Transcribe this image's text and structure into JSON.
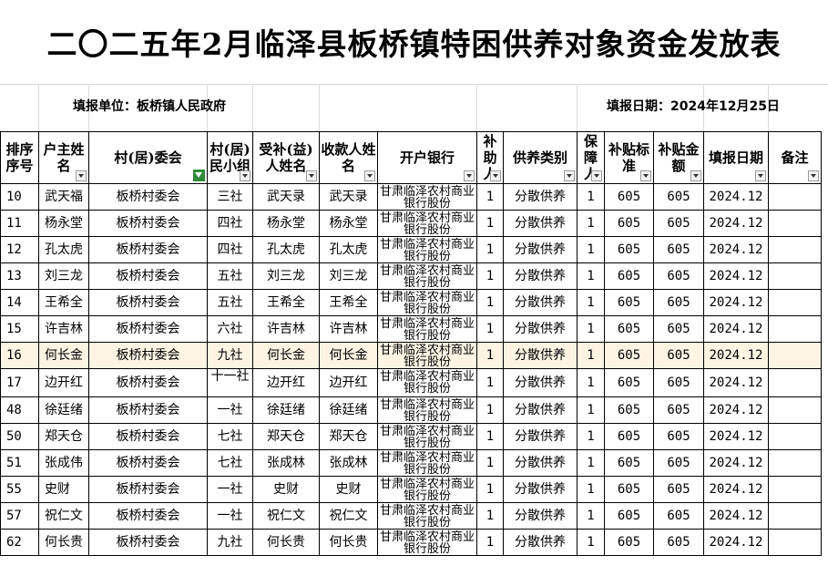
{
  "title": "二〇二五年2月临泽县板桥镇特困供养对象资金发放表",
  "unit_label": "填报单位：板桥镇人民政府",
  "date_label": "填报日期：2024年12月25日",
  "headers": [
    "排序序号",
    "户主姓名",
    "村(居)委会",
    "村(居)民小组",
    "受补(益)人姓名",
    "收款人姓名",
    "开户银行",
    "补助人",
    "供养类别",
    "保障人",
    "补贴标准",
    "补贴金额",
    "填报日期",
    "备注"
  ],
  "rows": [
    {
      "no": "10",
      "head": "武天福",
      "village": "板桥村委会",
      "group": "三社",
      "beneficiary": "武天录",
      "payee": "武天录",
      "bank": "甘肃临泽农村商业银行股份",
      "people": "1",
      "type": "分散供养",
      "guarantee": "1",
      "standard": "605",
      "amount": "605",
      "date": "2024.12",
      "note": ""
    },
    {
      "no": "11",
      "head": "杨永堂",
      "village": "板桥村委会",
      "group": "四社",
      "beneficiary": "杨永堂",
      "payee": "杨永堂",
      "bank": "甘肃临泽农村商业银行股份",
      "people": "1",
      "type": "分散供养",
      "guarantee": "1",
      "standard": "605",
      "amount": "605",
      "date": "2024.12",
      "note": ""
    },
    {
      "no": "12",
      "head": "孔太虎",
      "village": "板桥村委会",
      "group": "四社",
      "beneficiary": "孔太虎",
      "payee": "孔太虎",
      "bank": "甘肃临泽农村商业银行股份",
      "people": "1",
      "type": "分散供养",
      "guarantee": "1",
      "standard": "605",
      "amount": "605",
      "date": "2024.12",
      "note": ""
    },
    {
      "no": "13",
      "head": "刘三龙",
      "village": "板桥村委会",
      "group": "五社",
      "beneficiary": "刘三龙",
      "payee": "刘三龙",
      "bank": "甘肃临泽农村商业银行股份",
      "people": "1",
      "type": "分散供养",
      "guarantee": "1",
      "standard": "605",
      "amount": "605",
      "date": "2024.12",
      "note": ""
    },
    {
      "no": "14",
      "head": "王希全",
      "village": "板桥村委会",
      "group": "五社",
      "beneficiary": "王希全",
      "payee": "王希全",
      "bank": "甘肃临泽农村商业银行股份",
      "people": "1",
      "type": "分散供养",
      "guarantee": "1",
      "standard": "605",
      "amount": "605",
      "date": "2024.12",
      "note": ""
    },
    {
      "no": "15",
      "head": "许吉林",
      "village": "板桥村委会",
      "group": "六社",
      "beneficiary": "许吉林",
      "payee": "许吉林",
      "bank": "甘肃临泽农村商业银行股份",
      "people": "1",
      "type": "分散供养",
      "guarantee": "1",
      "standard": "605",
      "amount": "605",
      "date": "2024.12",
      "note": ""
    },
    {
      "no": "16",
      "head": "何长金",
      "village": "板桥村委会",
      "group": "九社",
      "beneficiary": "何长金",
      "payee": "何长金",
      "bank": "甘肃临泽农村商业银行股份",
      "people": "1",
      "type": "分散供养",
      "guarantee": "1",
      "standard": "605",
      "amount": "605",
      "date": "2024.12",
      "note": ""
    },
    {
      "no": "17",
      "head": "边开红",
      "village": "板桥村委会",
      "group": "十一社",
      "beneficiary": "边开红",
      "payee": "边开红",
      "bank": "甘肃临泽农村商业银行股份",
      "people": "1",
      "type": "分散供养",
      "guarantee": "1",
      "standard": "605",
      "amount": "605",
      "date": "2024.12",
      "note": ""
    },
    {
      "no": "48",
      "head": "徐廷绪",
      "village": "板桥村委会",
      "group": "一社",
      "beneficiary": "徐廷绪",
      "payee": "徐廷绪",
      "bank": "甘肃临泽农村商业银行股份",
      "people": "1",
      "type": "分散供养",
      "guarantee": "1",
      "standard": "605",
      "amount": "605",
      "date": "2024.12",
      "note": ""
    },
    {
      "no": "50",
      "head": "郑天仓",
      "village": "板桥村委会",
      "group": "七社",
      "beneficiary": "郑天仓",
      "payee": "郑天仓",
      "bank": "甘肃临泽农村商业银行股份",
      "people": "1",
      "type": "分散供养",
      "guarantee": "1",
      "standard": "605",
      "amount": "605",
      "date": "2024.12",
      "note": ""
    },
    {
      "no": "51",
      "head": "张成伟",
      "village": "板桥村委会",
      "group": "七社",
      "beneficiary": "张成林",
      "payee": "张成林",
      "bank": "甘肃临泽农村商业银行股份",
      "people": "1",
      "type": "分散供养",
      "guarantee": "1",
      "standard": "605",
      "amount": "605",
      "date": "2024.12",
      "note": ""
    },
    {
      "no": "55",
      "head": "史财",
      "village": "板桥村委会",
      "group": "一社",
      "beneficiary": "史财",
      "payee": "史财",
      "bank": "甘肃临泽农村商业银行股份",
      "people": "1",
      "type": "分散供养",
      "guarantee": "1",
      "standard": "605",
      "amount": "605",
      "date": "2024.12",
      "note": ""
    },
    {
      "no": "57",
      "head": "祝仁文",
      "village": "板桥村委会",
      "group": "一社",
      "beneficiary": "祝仁文",
      "payee": "祝仁文",
      "bank": "甘肃临泽农村商业银行股份",
      "people": "1",
      "type": "分散供养",
      "guarantee": "1",
      "standard": "605",
      "amount": "605",
      "date": "2024.12",
      "note": ""
    },
    {
      "no": "62",
      "head": "何长贵",
      "village": "板桥村委会",
      "group": "九社",
      "beneficiary": "何长贵",
      "payee": "何长贵",
      "bank": "甘肃临泽农村商业银行股份",
      "people": "1",
      "type": "分散供养",
      "guarantee": "1",
      "standard": "605",
      "amount": "605",
      "date": "2024.12",
      "note": ""
    }
  ],
  "highlight_row_index": 6,
  "colors": {
    "highlight": "#fdf4e3",
    "filter_active": "#2e8b3a"
  }
}
